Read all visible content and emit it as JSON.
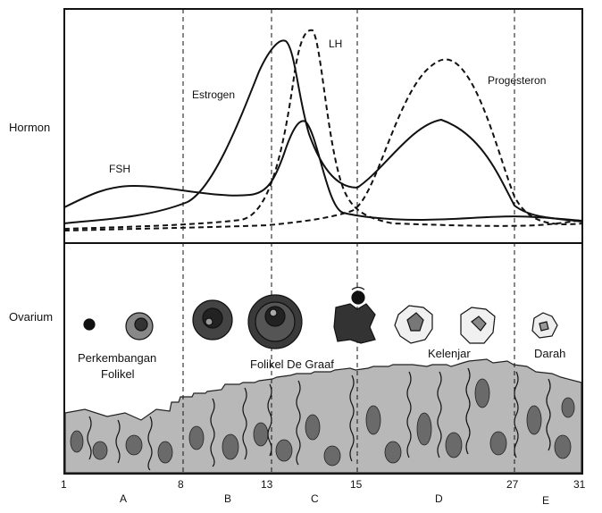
{
  "row_labels": {
    "hormon": "Hormon",
    "ovarium": "Ovarium"
  },
  "hormones": {
    "fsh": "FSH",
    "estrogen": "Estrogen",
    "lh": "LH",
    "progesteron": "Progesteron"
  },
  "ovary_labels": {
    "perkembangan": "Perkembangan",
    "folikel": "Folikel",
    "folikel_de_graaf": "Folikel De Graaf",
    "kelenjar": "Kelenjar",
    "darah": "Darah"
  },
  "days": [
    "1",
    "8",
    "13",
    "15",
    "27",
    "31"
  ],
  "phases": [
    "A",
    "B",
    "C",
    "D",
    "E"
  ],
  "colors": {
    "ink": "#111111",
    "tissue": "#b8b8b8",
    "tissue_dark": "#6a6a6a"
  }
}
